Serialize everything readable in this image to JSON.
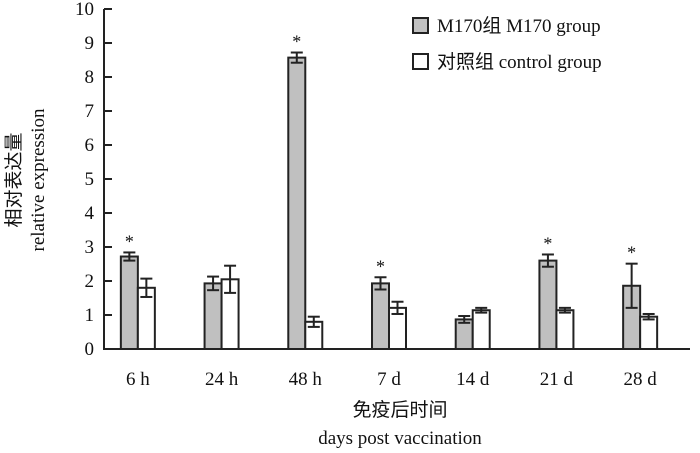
{
  "chart_data": {
    "type": "bar",
    "categories": [
      "6 h",
      "24 h",
      "48 h",
      "7 d",
      "14 d",
      "21 d",
      "28 d"
    ],
    "series": [
      {
        "name": "M170组 M170 group",
        "color": "#c0c0c0",
        "values": [
          2.72,
          1.93,
          8.57,
          1.93,
          0.87,
          2.6,
          1.86
        ],
        "errors": [
          0.12,
          0.2,
          0.15,
          0.18,
          0.1,
          0.18,
          0.65
        ],
        "significant": [
          true,
          false,
          true,
          true,
          false,
          true,
          true
        ]
      },
      {
        "name": "对照组 control group",
        "color": "#ffffff",
        "values": [
          1.8,
          2.05,
          0.8,
          1.21,
          1.14,
          1.14,
          0.95
        ],
        "errors": [
          0.27,
          0.4,
          0.15,
          0.18,
          0.07,
          0.07,
          0.08
        ],
        "significant": [
          false,
          false,
          false,
          false,
          false,
          false,
          false
        ]
      }
    ],
    "significance_marker": "*",
    "xlabel_cn": "免疫后时间",
    "xlabel": "days post vaccination",
    "ylabel_cn": "相对表达量",
    "ylabel": "relative expression",
    "ylim": [
      0,
      10
    ],
    "yticks": [
      0,
      1,
      2,
      3,
      4,
      5,
      6,
      7,
      8,
      9,
      10
    ],
    "grid": false,
    "legend_position": "top-right"
  }
}
